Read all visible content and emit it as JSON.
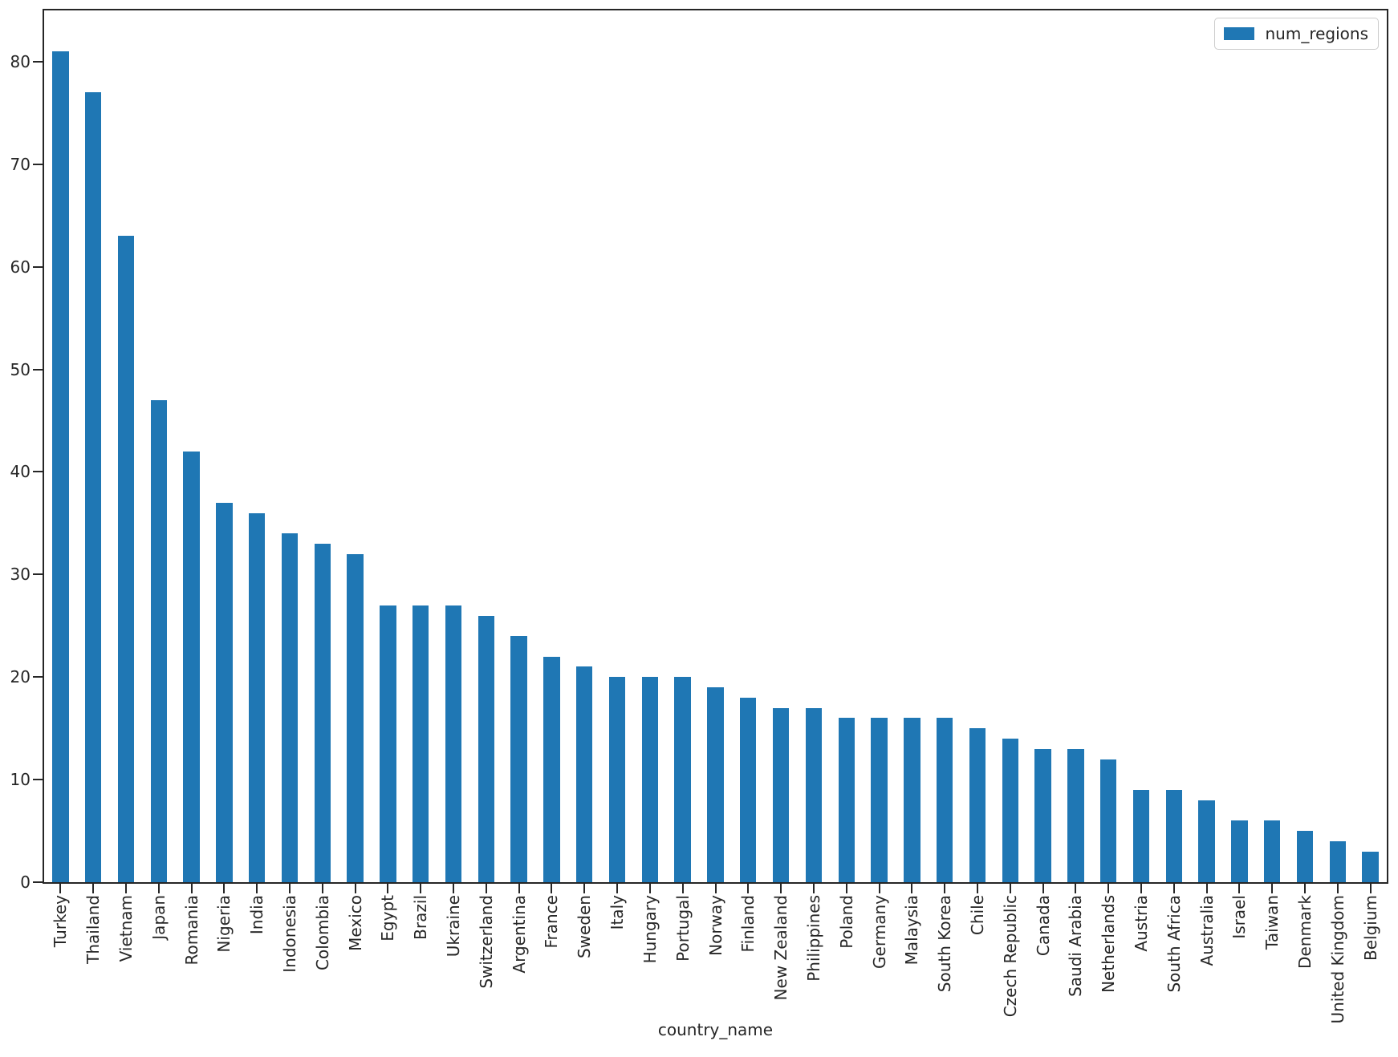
{
  "chart_data": {
    "type": "bar",
    "title": "",
    "xlabel": "country_name",
    "ylabel": "",
    "legend_position": "upper right",
    "grid": false,
    "ylim": [
      0,
      85
    ],
    "yticks": [
      0,
      10,
      20,
      30,
      40,
      50,
      60,
      70,
      80
    ],
    "categories": [
      "Turkey",
      "Thailand",
      "Vietnam",
      "Japan",
      "Romania",
      "Nigeria",
      "India",
      "Indonesia",
      "Colombia",
      "Mexico",
      "Egypt",
      "Brazil",
      "Ukraine",
      "Switzerland",
      "Argentina",
      "France",
      "Sweden",
      "Italy",
      "Hungary",
      "Portugal",
      "Norway",
      "Finland",
      "New Zealand",
      "Philippines",
      "Poland",
      "Germany",
      "Malaysia",
      "South Korea",
      "Chile",
      "Czech Republic",
      "Canada",
      "Saudi Arabia",
      "Netherlands",
      "Austria",
      "South Africa",
      "Australia",
      "Israel",
      "Taiwan",
      "Denmark",
      "United Kingdom",
      "Belgium"
    ],
    "series": [
      {
        "name": "num_regions",
        "values": [
          81,
          77,
          63,
          47,
          42,
          37,
          36,
          34,
          33,
          32,
          27,
          27,
          27,
          26,
          24,
          22,
          21,
          20,
          20,
          20,
          19,
          18,
          17,
          17,
          16,
          16,
          16,
          16,
          15,
          14,
          13,
          13,
          12,
          9,
          9,
          8,
          6,
          6,
          5,
          4,
          3
        ]
      }
    ],
    "colors": {
      "bar": "#1f77b4",
      "spine": "#262626",
      "text": "#262626",
      "legend_border": "#cccccc"
    }
  }
}
